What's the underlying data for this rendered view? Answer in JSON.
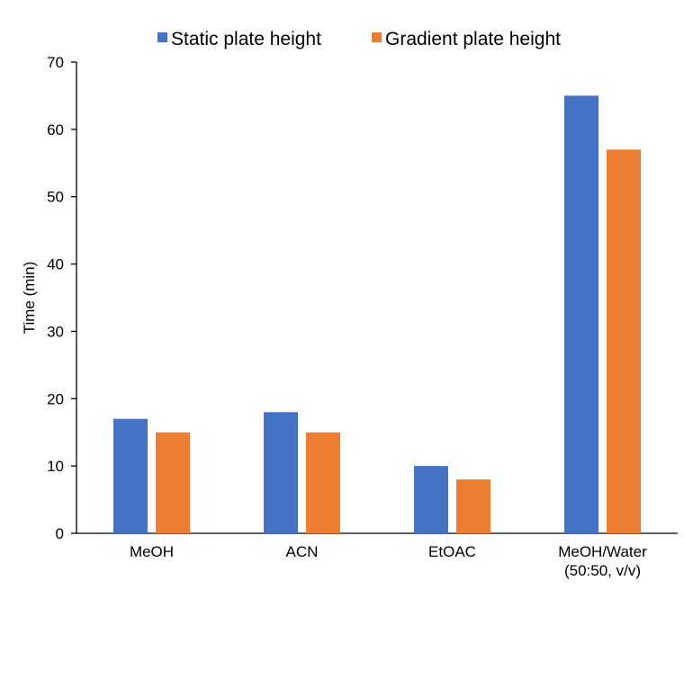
{
  "chart_data": {
    "type": "bar",
    "title": "",
    "xlabel": "",
    "ylabel": "Time (min)",
    "ylim": [
      0,
      70
    ],
    "yticks": [
      0,
      10,
      20,
      30,
      40,
      50,
      60,
      70
    ],
    "grid": false,
    "legend_position": "top",
    "categories": [
      [
        "MeOH"
      ],
      [
        "ACN"
      ],
      [
        "EtOAC"
      ],
      [
        "MeOH/Water",
        "(50:50, v/v)"
      ]
    ],
    "series": [
      {
        "name": "Static plate height",
        "color": "#4472C4",
        "values": [
          17,
          18,
          10,
          65
        ]
      },
      {
        "name": "Gradient plate height",
        "color": "#ED7D31",
        "values": [
          15,
          15,
          8,
          57
        ]
      }
    ]
  }
}
